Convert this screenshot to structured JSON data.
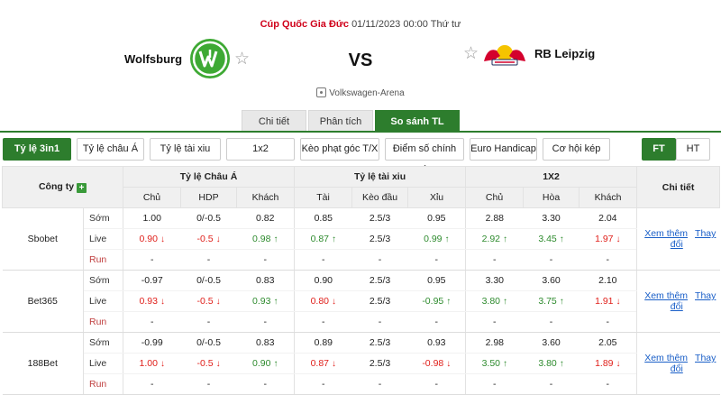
{
  "match": {
    "league": "Cúp Quốc Gia Đức",
    "datetime": "01/11/2023 00:00 Thứ tư",
    "home": "Wolfsburg",
    "away": "RB Leipzig",
    "vs": "VS",
    "venue": "Volkswagen-Arena"
  },
  "tabs": [
    "Chi tiết",
    "Phân tích",
    "So sánh TL"
  ],
  "filters": [
    "Tỷ lệ 3in1",
    "Tỷ lệ châu Á",
    "Tỷ lệ tài xiu",
    "1x2",
    "Kèo phạt góc T/X",
    "Điểm số chính xác",
    "Euro Handicap",
    "Cơ hội kép"
  ],
  "periods": [
    "FT",
    "HT"
  ],
  "table": {
    "company_header": "Công ty",
    "groups": [
      "Tỷ lệ Châu Á",
      "Tỷ lệ tài xiu",
      "1X2",
      "Chi tiết"
    ],
    "subheaders": [
      "Chủ",
      "HDP",
      "Khách",
      "Tài",
      "Kèo đầu",
      "Xỉu",
      "Chủ",
      "Hòa",
      "Khách"
    ],
    "row_types": [
      "Sớm",
      "Live",
      "Run"
    ],
    "view_more": "Xem thêm",
    "changes": "Thay đổi",
    "dash": "-",
    "bookmakers": [
      {
        "name": "Sbobet",
        "early": [
          "1.00",
          "0/-0.5",
          "0.82",
          "0.85",
          "2.5/3",
          "0.95",
          "2.88",
          "3.30",
          "2.04"
        ],
        "live": [
          "0.90",
          "-0.5",
          "0.98",
          "0.87",
          "2.5/3",
          "0.99",
          "2.92",
          "3.45",
          "1.97"
        ],
        "live_dir": [
          "down",
          "down",
          "up",
          "up",
          "",
          "up",
          "up",
          "up",
          "down"
        ]
      },
      {
        "name": "Bet365",
        "early": [
          "-0.97",
          "0/-0.5",
          "0.83",
          "0.90",
          "2.5/3",
          "0.95",
          "3.30",
          "3.60",
          "2.10"
        ],
        "live": [
          "0.93",
          "-0.5",
          "0.93",
          "0.80",
          "2.5/3",
          "-0.95",
          "3.80",
          "3.75",
          "1.91"
        ],
        "live_dir": [
          "down",
          "down",
          "up",
          "down",
          "",
          "up",
          "up",
          "up",
          "down"
        ]
      },
      {
        "name": "188Bet",
        "early": [
          "-0.99",
          "0/-0.5",
          "0.83",
          "0.89",
          "2.5/3",
          "0.93",
          "2.98",
          "3.60",
          "2.05"
        ],
        "live": [
          "1.00",
          "-0.5",
          "0.90",
          "0.87",
          "2.5/3",
          "-0.98",
          "3.50",
          "3.80",
          "1.89"
        ],
        "live_dir": [
          "down",
          "down",
          "up",
          "down",
          "",
          "down",
          "up",
          "up",
          "down"
        ]
      }
    ]
  }
}
